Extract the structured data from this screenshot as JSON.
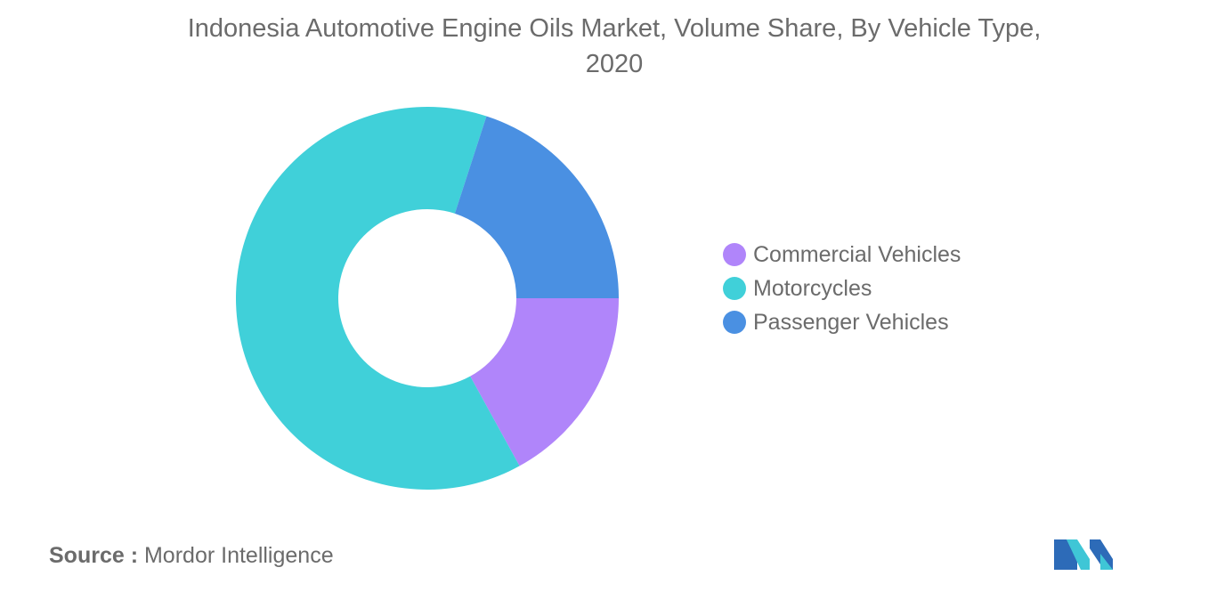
{
  "chart_data": {
    "type": "pie",
    "subtype": "donut",
    "title_lines": [
      "Indonesia Automotive Engine Oils Market, Volume Share, By Vehicle Type,",
      "2020"
    ],
    "categories": [
      "Commercial Vehicles",
      "Motorcycles",
      "Passenger Vehicles"
    ],
    "values": [
      17,
      63,
      20
    ],
    "colors": [
      "#b085fa",
      "#40d0d9",
      "#4a90e2"
    ],
    "legend_position": "right"
  },
  "source": {
    "label": "Source :",
    "text": "Mordor Intelligence"
  },
  "logo": {
    "icon": "mordor-intelligence-logo-icon",
    "colors": [
      "#3fc6d6",
      "#2d6bb8"
    ]
  }
}
